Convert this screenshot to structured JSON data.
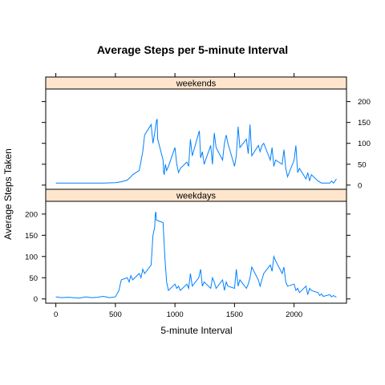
{
  "chart_data": {
    "type": "line",
    "title": "Average Steps per 5-minute Interval",
    "xlabel": "5-minute Interval",
    "ylabel": "Average Steps Taken",
    "xlim": [
      -85,
      2440
    ],
    "ylim": [
      -10,
      230
    ],
    "x_ticks": [
      0,
      500,
      1000,
      1500,
      2000
    ],
    "y_ticks": [
      0,
      50,
      100,
      150,
      200
    ],
    "line_color": "#0080ff",
    "strip_color": "#ffe5cc",
    "panels": [
      {
        "name": "weekends",
        "x": [
          0,
          100,
          200,
          300,
          400,
          500,
          550,
          600,
          630,
          645,
          700,
          730,
          745,
          800,
          815,
          830,
          845,
          850,
          855,
          900,
          905,
          910,
          915,
          920,
          930,
          945,
          1000,
          1015,
          1030,
          1045,
          1100,
          1115,
          1130,
          1145,
          1200,
          1205,
          1215,
          1230,
          1245,
          1300,
          1315,
          1330,
          1345,
          1400,
          1415,
          1430,
          1445,
          1500,
          1515,
          1530,
          1545,
          1600,
          1615,
          1630,
          1645,
          1700,
          1715,
          1730,
          1745,
          1800,
          1815,
          1830,
          1845,
          1900,
          1915,
          1930,
          1945,
          2000,
          2015,
          2030,
          2045,
          2100,
          2115,
          2130,
          2145,
          2200,
          2230,
          2300,
          2315,
          2330,
          2345,
          2355
        ],
        "y": [
          5,
          5,
          5,
          5,
          5,
          6,
          8,
          12,
          20,
          25,
          35,
          80,
          120,
          145,
          100,
          125,
          155,
          158,
          110,
          60,
          30,
          25,
          40,
          50,
          35,
          45,
          90,
          50,
          30,
          40,
          55,
          45,
          110,
          70,
          125,
          130,
          65,
          80,
          50,
          95,
          50,
          125,
          90,
          60,
          100,
          120,
          100,
          45,
          70,
          140,
          90,
          110,
          75,
          145,
          70,
          95,
          80,
          95,
          100,
          60,
          90,
          45,
          60,
          50,
          85,
          40,
          20,
          60,
          95,
          30,
          40,
          15,
          30,
          10,
          25,
          10,
          5,
          5,
          10,
          5,
          10,
          15
        ]
      },
      {
        "name": "weekdays",
        "x": [
          0,
          50,
          100,
          150,
          200,
          250,
          300,
          350,
          400,
          450,
          500,
          530,
          545,
          550,
          600,
          615,
          630,
          645,
          700,
          715,
          730,
          745,
          800,
          815,
          830,
          835,
          840,
          845,
          850,
          900,
          915,
          930,
          945,
          1000,
          1015,
          1030,
          1045,
          1100,
          1115,
          1130,
          1145,
          1200,
          1215,
          1230,
          1245,
          1300,
          1315,
          1330,
          1345,
          1400,
          1415,
          1430,
          1445,
          1500,
          1515,
          1530,
          1545,
          1600,
          1615,
          1630,
          1645,
          1700,
          1715,
          1730,
          1745,
          1800,
          1815,
          1830,
          1845,
          1900,
          1915,
          1930,
          1945,
          2000,
          2015,
          2030,
          2045,
          2100,
          2115,
          2130,
          2145,
          2200,
          2215,
          2230,
          2245,
          2300,
          2315,
          2330,
          2355
        ],
        "y": [
          5,
          3,
          4,
          3,
          2,
          5,
          3,
          4,
          6,
          3,
          5,
          20,
          40,
          45,
          50,
          40,
          55,
          45,
          60,
          50,
          70,
          60,
          80,
          150,
          170,
          200,
          205,
          185,
          185,
          180,
          100,
          40,
          20,
          35,
          25,
          30,
          20,
          35,
          25,
          60,
          30,
          50,
          70,
          30,
          40,
          25,
          50,
          40,
          25,
          45,
          20,
          40,
          30,
          25,
          70,
          30,
          45,
          25,
          35,
          50,
          75,
          45,
          30,
          45,
          60,
          80,
          65,
          100,
          90,
          60,
          75,
          40,
          30,
          35,
          20,
          25,
          15,
          30,
          10,
          25,
          20,
          15,
          8,
          12,
          6,
          10,
          5,
          8,
          4
        ]
      }
    ]
  }
}
